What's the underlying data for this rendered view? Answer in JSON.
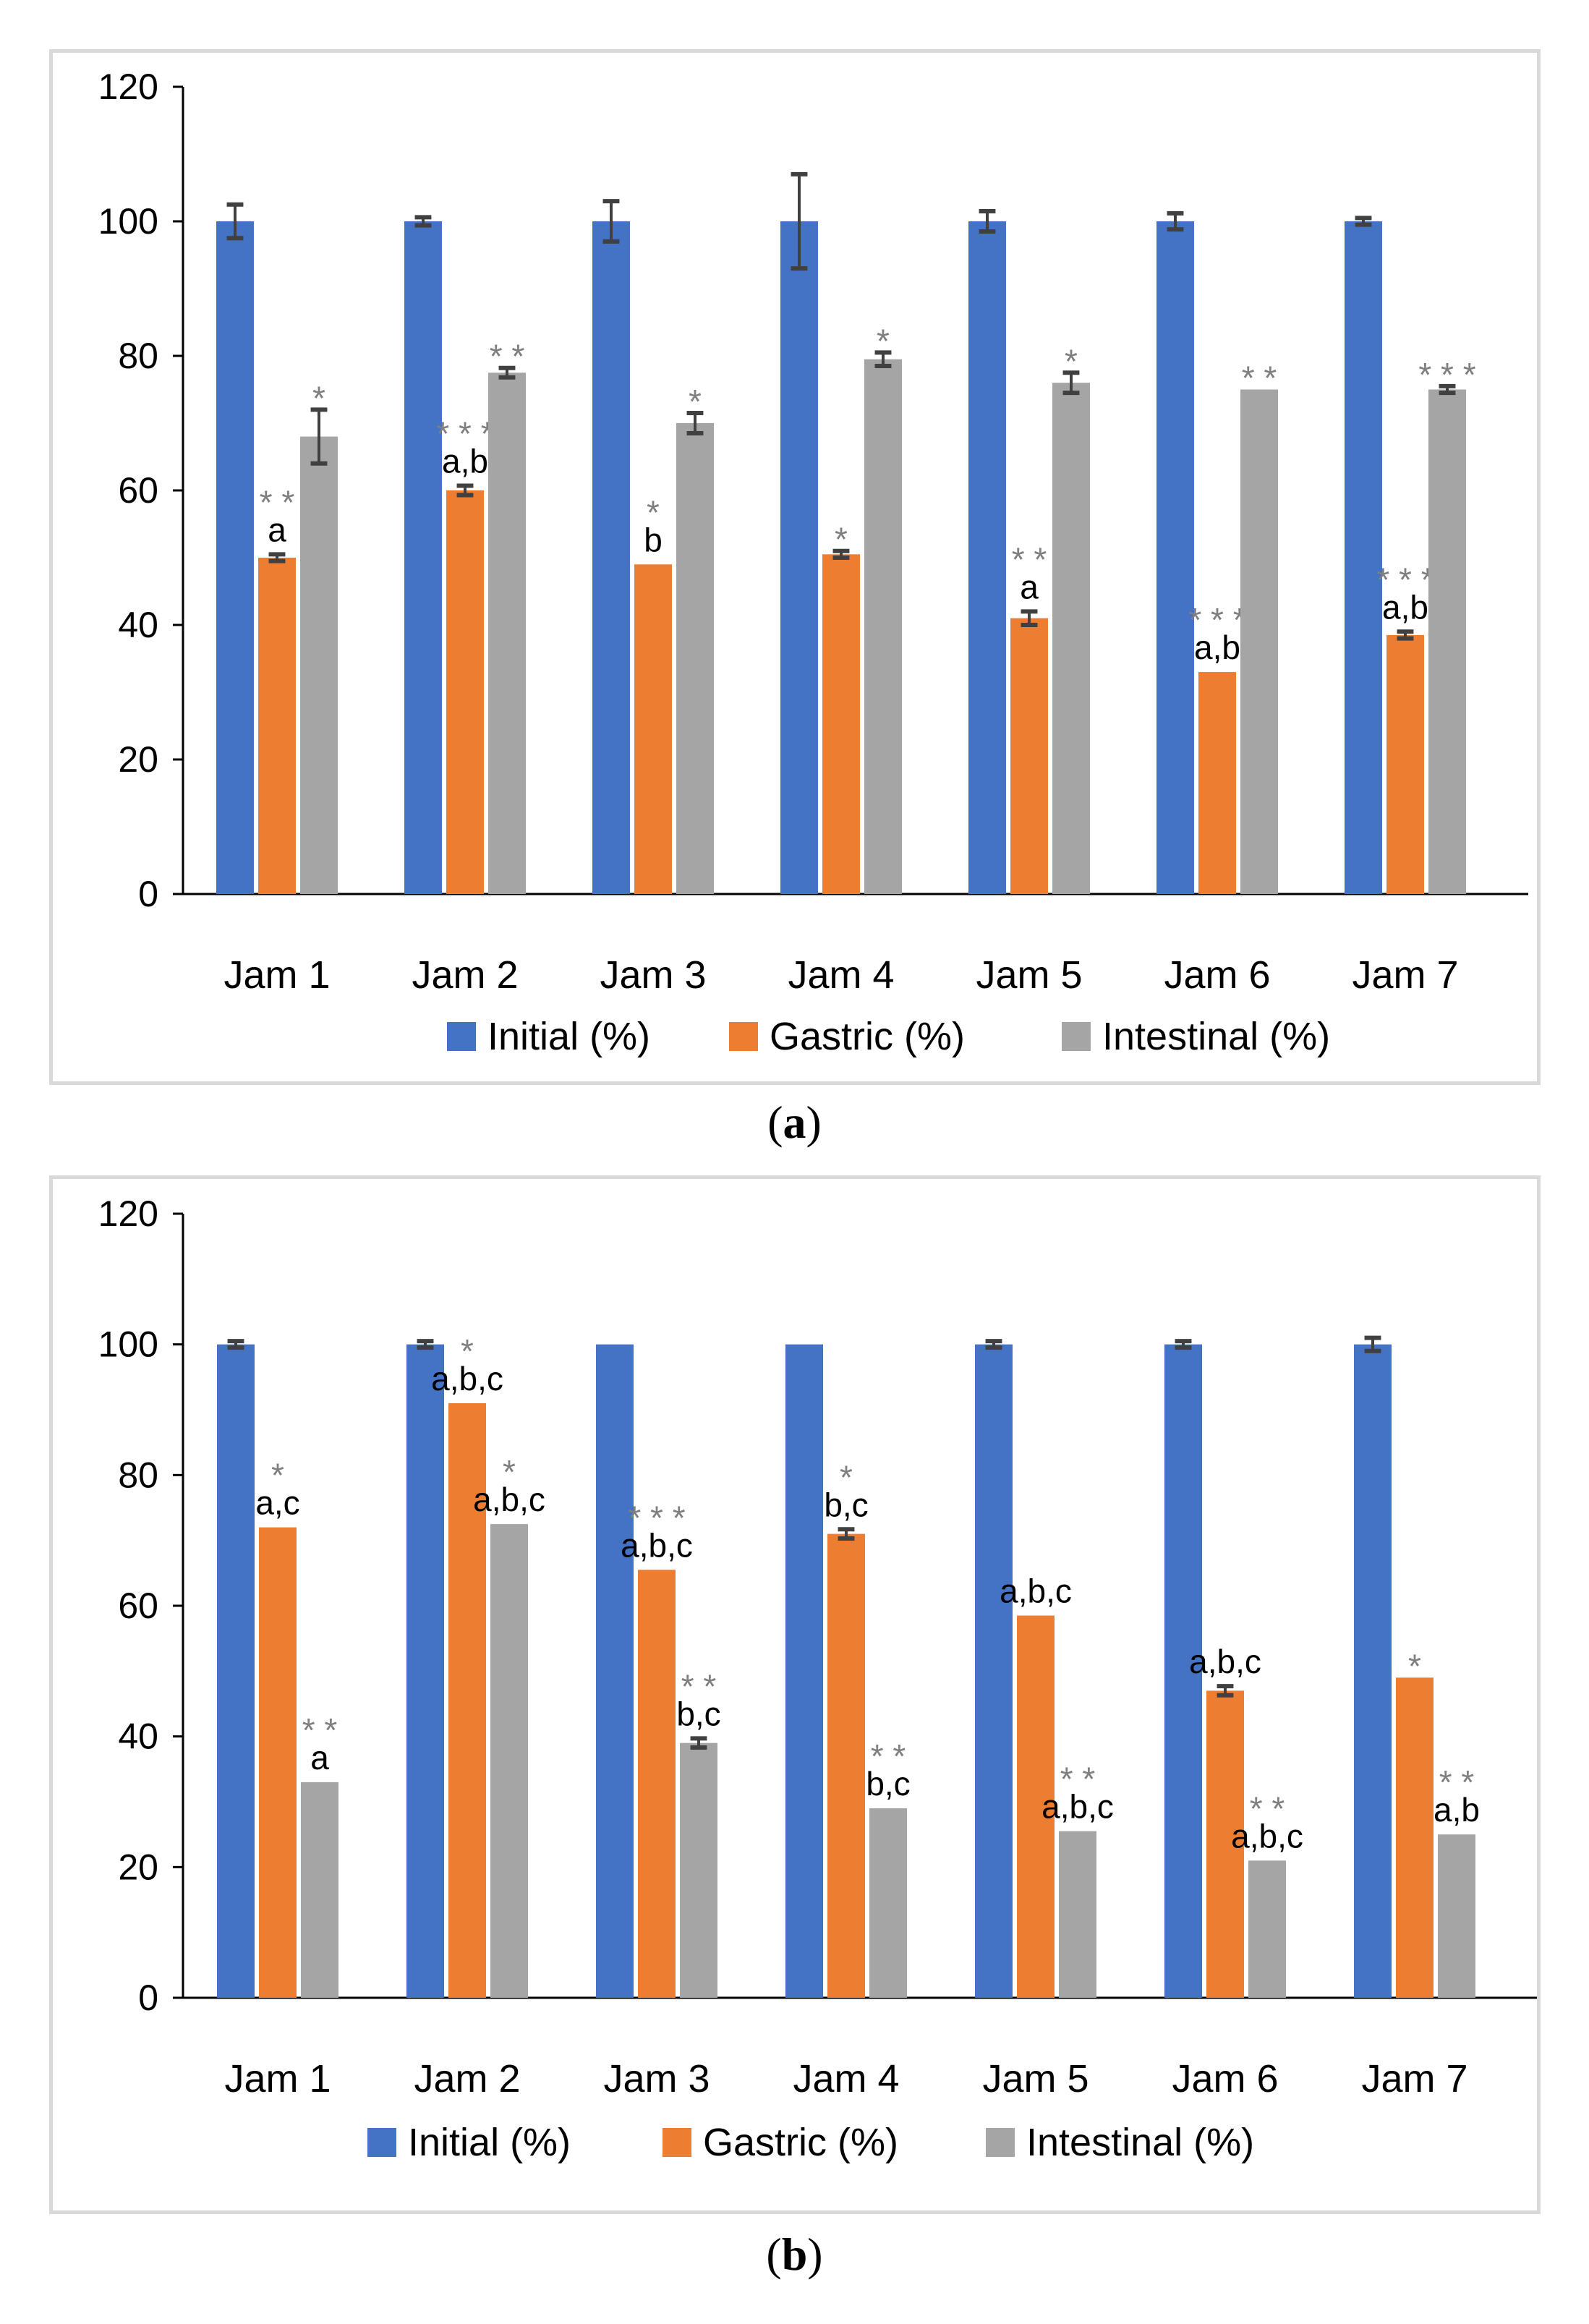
{
  "colors": {
    "initial": "#4472C4",
    "gastric": "#ED7D31",
    "intestinal": "#A5A5A5",
    "axis": "#000000",
    "error": "#404040",
    "star": "#7f7f7f"
  },
  "chart_data": [
    {
      "panel": "a",
      "type": "bar",
      "categories": [
        "Jam 1",
        "Jam 2",
        "Jam 3",
        "Jam 4",
        "Jam 5",
        "Jam 6",
        "Jam 7"
      ],
      "ylim": [
        0,
        120
      ],
      "yticks": [
        0,
        20,
        40,
        60,
        80,
        100,
        120
      ],
      "series": [
        {
          "name": "Initial (%)",
          "color_key": "initial",
          "values": [
            100,
            100,
            100,
            100,
            100,
            100,
            100
          ],
          "errors": [
            2.5,
            0.6,
            3,
            7,
            1.5,
            1.2,
            0.5
          ],
          "stars": [
            "",
            "",
            "",
            "",
            "",
            "",
            ""
          ],
          "letters": [
            "",
            "",
            "",
            "",
            "",
            "",
            ""
          ]
        },
        {
          "name": "Gastric (%)",
          "color_key": "gastric",
          "values": [
            50,
            60,
            49,
            50.5,
            41,
            33,
            38.5
          ],
          "errors": [
            0.5,
            0.7,
            0,
            0.5,
            1,
            0,
            0.5
          ],
          "stars": [
            "* *",
            "* * *",
            "*",
            "*",
            "* *",
            "* * *",
            "* * *"
          ],
          "letters": [
            "a",
            "a,b",
            "b",
            "",
            "a",
            "a,b",
            "a,b"
          ]
        },
        {
          "name": "Intestinal (%)",
          "color_key": "intestinal",
          "values": [
            68,
            77.5,
            70,
            79.5,
            76,
            75,
            75
          ],
          "errors": [
            4,
            0.7,
            1.5,
            1,
            1.5,
            0,
            0.5
          ],
          "stars": [
            "*",
            "* *",
            "*",
            "*",
            "*",
            "* *",
            "* * *"
          ],
          "letters": [
            "",
            "",
            "",
            "",
            "",
            "",
            ""
          ]
        }
      ]
    },
    {
      "panel": "b",
      "type": "bar",
      "categories": [
        "Jam 1",
        "Jam 2",
        "Jam 3",
        "Jam 4",
        "Jam 5",
        "Jam 6",
        "Jam 7"
      ],
      "ylim": [
        0,
        120
      ],
      "yticks": [
        0,
        20,
        40,
        60,
        80,
        100,
        120
      ],
      "series": [
        {
          "name": "Initial (%)",
          "color_key": "initial",
          "values": [
            100,
            100,
            100,
            100,
            100,
            100,
            100
          ],
          "errors": [
            0.5,
            0.5,
            0,
            0,
            0.5,
            0.5,
            1
          ],
          "stars": [
            "",
            "",
            "",
            "",
            "",
            "",
            ""
          ],
          "letters": [
            "",
            "",
            "",
            "",
            "",
            "",
            ""
          ]
        },
        {
          "name": "Gastric (%)",
          "color_key": "gastric",
          "values": [
            72,
            91,
            65.5,
            71,
            58.5,
            47,
            49
          ],
          "errors": [
            0,
            0,
            0,
            0.7,
            0,
            0.7,
            0
          ],
          "stars": [
            "*",
            "*",
            "* * *",
            "*",
            "",
            "",
            "*"
          ],
          "letters": [
            "a,c",
            "a,b,c",
            "a,b,c",
            "b,c",
            "a,b,c",
            "a,b,c",
            ""
          ]
        },
        {
          "name": "Intestinal (%)",
          "color_key": "intestinal",
          "values": [
            33,
            72.5,
            39,
            29,
            25.5,
            21,
            25
          ],
          "errors": [
            0,
            0,
            0.7,
            0,
            0,
            0,
            0
          ],
          "stars": [
            "* *",
            "*",
            "* *",
            "* *",
            "* *",
            "* *",
            "* *"
          ],
          "letters": [
            "a",
            "a,b,c",
            "b,c",
            "b,c",
            "a,b,c",
            "a,b,c",
            "a,b"
          ]
        }
      ]
    }
  ],
  "captions": {
    "a": "a",
    "b": "b"
  }
}
